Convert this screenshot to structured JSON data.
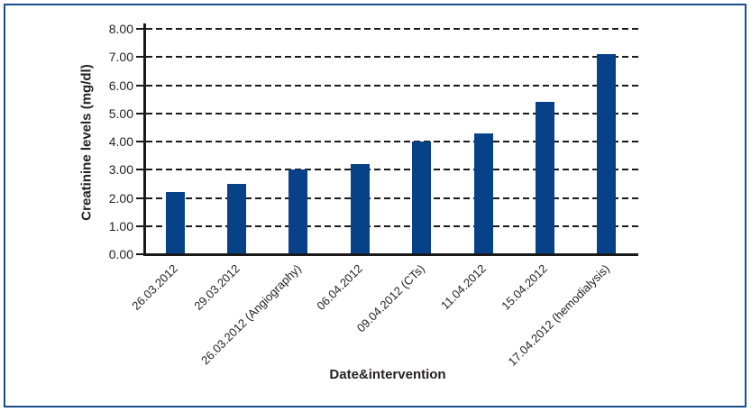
{
  "chart_data": {
    "type": "bar",
    "title": "",
    "xlabel": "Date&intervention",
    "ylabel": "Creatinine levels (mg/dl)",
    "categories": [
      "26.03.2012",
      "29.03.2012",
      "26.03.2012 (Angiography)",
      "06.04.2012",
      "09.04.2012 (CTs)",
      "11.04.2012",
      "15.04.2012",
      "17.04.2012 (hemodialysis)"
    ],
    "values": [
      2.2,
      2.5,
      3.0,
      3.2,
      4.0,
      4.3,
      5.4,
      7.1
    ],
    "ylim": [
      0,
      8
    ],
    "ytick_step": 1.0,
    "ytick_labels": [
      "0.00",
      "1.00",
      "2.00",
      "3.00",
      "4.00",
      "5.00",
      "6.00",
      "7.00",
      "8.00"
    ],
    "grid": "horizontal-dashed",
    "legend": "none",
    "bar_color": "#074289",
    "frame_border_color": "#1b4e8c",
    "axis_color": "#1a1a1a",
    "text_color": "#231f20"
  }
}
